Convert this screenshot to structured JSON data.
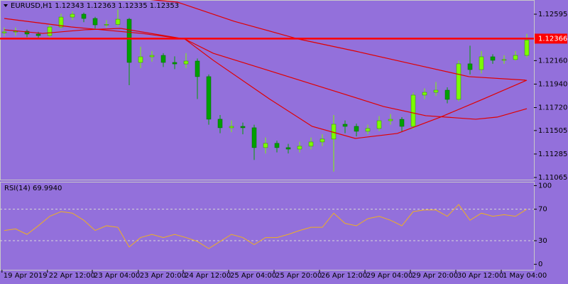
{
  "chart_data": [
    {
      "type": "candlestick",
      "title": "EURUSD,H1  1.12343 1.12363 1.12335 1.12353",
      "open": [
        1.1242,
        1.12429,
        1.12435,
        1.12409,
        1.12395,
        1.12475,
        1.12568,
        1.12595,
        1.12555,
        1.12495,
        1.125,
        1.12548,
        1.12143,
        1.12196,
        1.12209,
        1.12143,
        1.12129,
        1.12156,
        1.1201,
        1.11611,
        1.11531,
        1.11544,
        1.11531,
        1.11345,
        1.11385,
        1.11345,
        1.11331,
        1.11358,
        1.11398,
        1.11425,
        1.11564,
        1.11544,
        1.11498,
        1.11524,
        1.11597,
        1.1161,
        1.11544,
        1.11837,
        1.11863,
        1.11883,
        1.11797,
        1.1213,
        1.12076,
        1.12196,
        1.12163,
        1.1217,
        1.12209
      ],
      "high": [
        1.1247,
        1.1247,
        1.1245,
        1.1243,
        1.125,
        1.126,
        1.1262,
        1.1261,
        1.1257,
        1.1254,
        1.1264,
        1.1256,
        1.1229,
        1.1225,
        1.1223,
        1.122,
        1.1223,
        1.1218,
        1.1203,
        1.1165,
        1.116,
        1.1158,
        1.1156,
        1.1144,
        1.1141,
        1.1138,
        1.114,
        1.1144,
        1.1147,
        1.1165,
        1.116,
        1.1157,
        1.1156,
        1.1164,
        1.1166,
        1.1163,
        1.1186,
        1.119,
        1.1196,
        1.1191,
        1.1216,
        1.123,
        1.1225,
        1.1222,
        1.1221,
        1.1225,
        1.1241
      ],
      "low": [
        1.1239,
        1.12395,
        1.1238,
        1.1237,
        1.1238,
        1.1246,
        1.1254,
        1.1252,
        1.1246,
        1.1247,
        1.1248,
        1.1193,
        1.1209,
        1.1215,
        1.121,
        1.1208,
        1.1209,
        1.118,
        1.1156,
        1.1148,
        1.1149,
        1.1147,
        1.1123,
        1.1129,
        1.113,
        1.1129,
        1.113,
        1.1133,
        1.1136,
        1.1112,
        1.1148,
        1.1145,
        1.1147,
        1.115,
        1.1156,
        1.1149,
        1.1152,
        1.118,
        1.1183,
        1.1176,
        1.1178,
        1.1203,
        1.1204,
        1.1213,
        1.1213,
        1.1216,
        1.1219
      ],
      "close": [
        1.12429,
        1.12435,
        1.12409,
        1.12395,
        1.12475,
        1.12568,
        1.12595,
        1.12555,
        1.12495,
        1.125,
        1.12548,
        1.12143,
        1.12196,
        1.12209,
        1.12143,
        1.12129,
        1.12156,
        1.1201,
        1.11611,
        1.11531,
        1.11544,
        1.11531,
        1.11345,
        1.11385,
        1.11345,
        1.11331,
        1.11358,
        1.11398,
        1.11425,
        1.11564,
        1.11544,
        1.11498,
        1.11524,
        1.11597,
        1.1161,
        1.11544,
        1.11837,
        1.11863,
        1.11883,
        1.11797,
        1.1213,
        1.12076,
        1.12196,
        1.12163,
        1.1217,
        1.12209,
        1.12353
      ],
      "up_color": "#7cfc00",
      "down_color": "#00a000",
      "series": [
        {
          "color": "#e00000",
          "x": [
            10,
            15.25,
            20.25,
            25.9,
            30.9,
            35.9,
            40.9,
            45.9
          ],
          "values": [
            1.1276,
            1.12708,
            1.12528,
            1.12362,
            1.12249,
            1.12129,
            1.1201,
            1.11977
          ]
        },
        {
          "color": "#e00000",
          "x": [
            0,
            5.9,
            12.1,
            15.9,
            18.4,
            23.4,
            28.4,
            33.4,
            37.1,
            41.5,
            43.4,
            46
          ],
          "values": [
            1.12555,
            1.12475,
            1.12415,
            1.12362,
            1.12229,
            1.12063,
            1.11897,
            1.1173,
            1.11644,
            1.11611,
            1.11631,
            1.1171
          ]
        },
        {
          "color": "#e00000",
          "x": [
            0,
            3.4,
            7.1,
            10.25,
            15.9,
            18.4,
            23.4,
            27.1,
            30.9,
            34.6,
            38.4,
            42.1,
            46
          ],
          "values": [
            1.12449,
            1.12415,
            1.12449,
            1.12462,
            1.12362,
            1.12163,
            1.11797,
            1.11544,
            1.11431,
            1.11478,
            1.11631,
            1.11797,
            1.11977
          ]
        }
      ],
      "price_line": {
        "value": 1.12366,
        "label": "1.12366",
        "color": "#ff0000"
      },
      "xlim": [
        -0.375,
        46.625
      ],
      "ylim": [
        1.11045,
        1.12728
      ],
      "yticks": [
        {
          "value": 1.12595,
          "label": "1.12595"
        },
        {
          "value": 1.1216,
          "label": "1.12160"
        },
        {
          "value": 1.1194,
          "label": "1.11940"
        },
        {
          "value": 1.1172,
          "label": "1.11720"
        },
        {
          "value": 1.11505,
          "label": "1.11505"
        },
        {
          "value": 1.11285,
          "label": "1.11285"
        },
        {
          "value": 1.11065,
          "label": "1.11065"
        }
      ]
    },
    {
      "type": "line",
      "title": "RSI(14) 69.9940",
      "color": "#f0b020",
      "values": [
        43,
        45,
        38,
        49,
        61,
        67,
        65,
        56,
        43,
        49,
        47,
        22,
        34,
        38,
        34,
        38,
        34,
        29,
        20,
        29,
        38,
        34,
        25,
        34,
        34,
        38,
        43,
        47,
        47,
        65,
        52,
        49,
        58,
        61,
        56,
        49,
        67,
        69,
        69,
        61,
        76,
        56,
        65,
        61,
        63,
        61,
        69.994
      ],
      "levels": [
        70,
        30
      ],
      "ylim": [
        -7,
        104
      ],
      "yticks": [
        100,
        70,
        30,
        0
      ],
      "xticks": [
        {
          "value": -0.2,
          "label": "19 Apr 2019"
        },
        {
          "value": 3.8,
          "label": "22 Apr 12:00"
        },
        {
          "value": 7.75,
          "label": "23 Apr 04:00"
        },
        {
          "value": 11.8,
          "label": "23 Apr 20:00"
        },
        {
          "value": 15.75,
          "label": "24 Apr 12:00"
        },
        {
          "value": 19.75,
          "label": "25 Apr 04:00"
        },
        {
          "value": 23.75,
          "label": "25 Apr 20:00"
        },
        {
          "value": 27.75,
          "label": "26 Apr 12:00"
        },
        {
          "value": 31.75,
          "label": "29 Apr 04:00"
        },
        {
          "value": 35.75,
          "label": "29 Apr 20:00"
        },
        {
          "value": 39.75,
          "label": "30 Apr 12:00"
        },
        {
          "value": 43.75,
          "label": "1 May 04:00"
        }
      ]
    }
  ]
}
